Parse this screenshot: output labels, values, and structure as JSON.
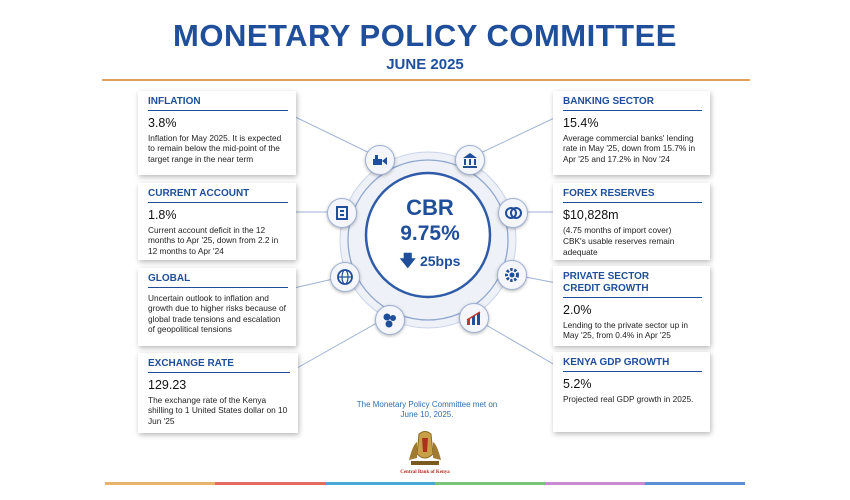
{
  "header": {
    "title": "MONETARY POLICY COMMITTEE",
    "subtitle": "JUNE 2025"
  },
  "center": {
    "label": "CBR",
    "value": "9.75%",
    "change": "25bps",
    "change_direction": "down",
    "change_icon": "arrow-down-icon"
  },
  "cards": {
    "inflation": {
      "heading": "INFLATION",
      "value": "3.8%",
      "description": "Inflation for May 2025. It is expected to remain below the mid-point of the target range in the near term"
    },
    "current_account": {
      "heading": "CURRENT ACCOUNT",
      "value": "1.8%",
      "description": "Current account deficit in the 12 months to Apr '25, down from 2.2 in 12 months to Apr '24"
    },
    "global": {
      "heading": "GLOBAL",
      "description": "Uncertain outlook to inflation and growth due to higher risks because of global trade tensions and escalation of geopolitical tensions"
    },
    "exchange_rate": {
      "heading": "EXCHANGE RATE",
      "value": "129.23",
      "description": "The exchange rate of the Kenya shilling to 1 United States dollar on 10 Jun '25"
    },
    "banking_sector": {
      "heading": "BANKING SECTOR",
      "value": "15.4%",
      "description": "Average commercial banks' lending rate in May '25, down from 15.7% in Apr '25 and 17.2% in Nov '24"
    },
    "forex_reserves": {
      "heading": "FOREX RESERVES",
      "value": "$10,828m",
      "description_1": "(4.75 months of import cover)",
      "description_2": "CBK's usable reserves remain adequate"
    },
    "private_sector": {
      "heading_1": "PRIVATE SECTOR",
      "heading_2": "CREDIT GROWTH",
      "value": "2.0%",
      "description": "Lending to the private sector up in May '25, from 0.4% in Apr '25"
    },
    "gdp": {
      "heading": "KENYA GDP GROWTH",
      "value": "5.2%",
      "description": "Projected real GDP growth in 2025."
    }
  },
  "icons": [
    "inflation-icon",
    "current-account-icon",
    "globe-icon",
    "coins-icon",
    "bank-icon",
    "forex-icon",
    "gear-icon",
    "chart-icon"
  ],
  "footer": {
    "note": "The Monetary Policy Committee met on June 10, 2025.",
    "logo_text": "Central Bank of Kenya"
  },
  "colors": {
    "brand_blue": "#1f4e9b",
    "accent_orange": "#e0a05a",
    "footer_bar": [
      "#e8b46a",
      "#e36b60",
      "#4aa8d8",
      "#7ac47a",
      "#c98ad0",
      "#5d8fd6"
    ]
  }
}
